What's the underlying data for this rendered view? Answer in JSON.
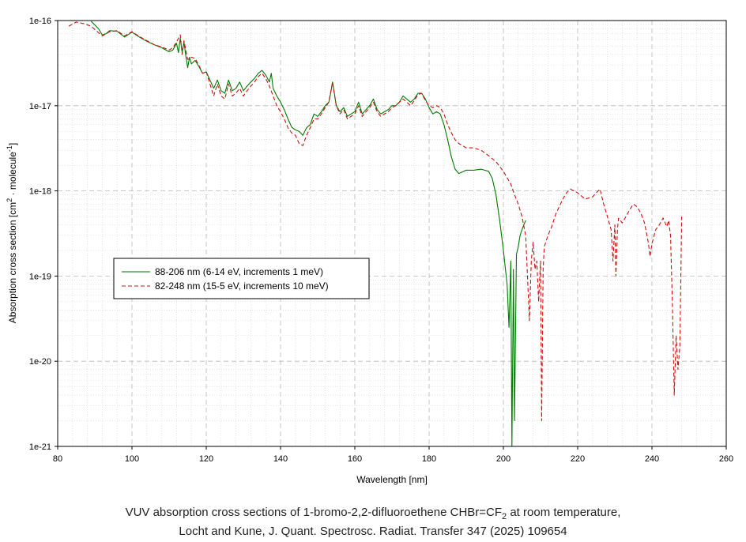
{
  "chart_data": {
    "type": "line",
    "xlabel": "Wavelength [nm]",
    "ylabel_main": "Absorption cross section [cm",
    "ylabel_sup1": "2",
    "ylabel_mid": " · molecule",
    "ylabel_sup2": "-1",
    "ylabel_end": "]",
    "xlim": [
      80,
      260
    ],
    "ylim": [
      1e-21,
      1e-16
    ],
    "y_scale": "log",
    "grid": true,
    "legend_position": "left-middle",
    "x_ticks": [
      80,
      100,
      120,
      140,
      160,
      180,
      200,
      220,
      240,
      260
    ],
    "x_tick_labels": [
      "80",
      "100",
      "120",
      "140",
      "160",
      "180",
      "200",
      "220",
      "240",
      "260"
    ],
    "y_ticks": [
      1e-21,
      1e-20,
      1e-19,
      1e-18,
      1e-17,
      1e-16
    ],
    "y_tick_labels": [
      "1e-21",
      "1e-20",
      "1e-19",
      "1e-18",
      "1e-17",
      "1e-16"
    ],
    "series": [
      {
        "name": "88-206 nm (6-14 eV, increments 1 meV)",
        "color": "#007a00",
        "dash": "solid",
        "points": [
          [
            89,
            9.8e-17
          ],
          [
            91,
            8e-17
          ],
          [
            92,
            6.8e-17
          ],
          [
            93,
            7e-17
          ],
          [
            94,
            7.6e-17
          ],
          [
            96,
            7.5e-17
          ],
          [
            98,
            6.4e-17
          ],
          [
            100,
            7.3e-17
          ],
          [
            102,
            6.4e-17
          ],
          [
            104,
            5.7e-17
          ],
          [
            106,
            5.2e-17
          ],
          [
            108,
            4.8e-17
          ],
          [
            110,
            4.3e-17
          ],
          [
            111,
            4.5e-17
          ],
          [
            112,
            5.4e-17
          ],
          [
            112.5,
            4.2e-17
          ],
          [
            113,
            6.2e-17
          ],
          [
            113.5,
            4.2e-17
          ],
          [
            114,
            5.6e-17
          ],
          [
            114.5,
            3.8e-17
          ],
          [
            115,
            2.8e-17
          ],
          [
            115.5,
            3.7e-17
          ],
          [
            116,
            3.1e-17
          ],
          [
            117,
            3.4e-17
          ],
          [
            118,
            2.9e-17
          ],
          [
            119,
            2.4e-17
          ],
          [
            120,
            2.5e-17
          ],
          [
            121,
            2e-17
          ],
          [
            122,
            1.6e-17
          ],
          [
            123,
            2e-17
          ],
          [
            124,
            1.5e-17
          ],
          [
            125,
            1.4e-17
          ],
          [
            126,
            2e-17
          ],
          [
            127,
            1.5e-17
          ],
          [
            128,
            1.6e-17
          ],
          [
            129,
            1.9e-17
          ],
          [
            130,
            1.5e-17
          ],
          [
            131,
            1.7e-17
          ],
          [
            132,
            1.9e-17
          ],
          [
            133,
            2.1e-17
          ],
          [
            134,
            2.4e-17
          ],
          [
            135,
            2.6e-17
          ],
          [
            136,
            2.3e-17
          ],
          [
            137,
            1.9e-17
          ],
          [
            137.5,
            2.4e-17
          ],
          [
            138,
            1.6e-17
          ],
          [
            139,
            1.3e-17
          ],
          [
            140,
            1.1e-17
          ],
          [
            141,
            9e-18
          ],
          [
            142,
            7e-18
          ],
          [
            143,
            5.6e-18
          ],
          [
            144,
            5.2e-18
          ],
          [
            145,
            5e-18
          ],
          [
            146,
            4.5e-18
          ],
          [
            147,
            5.5e-18
          ],
          [
            148,
            6e-18
          ],
          [
            149,
            8e-18
          ],
          [
            150,
            7.5e-18
          ],
          [
            151,
            8.5e-18
          ],
          [
            152,
            1e-17
          ],
          [
            153,
            1.1e-17
          ],
          [
            153.5,
            1.4e-17
          ],
          [
            154,
            1.9e-17
          ],
          [
            154.5,
            1.4e-17
          ],
          [
            155,
            1e-17
          ],
          [
            156,
            8.5e-18
          ],
          [
            157,
            9.5e-18
          ],
          [
            158,
            7.5e-18
          ],
          [
            159,
            8e-18
          ],
          [
            160,
            8.5e-18
          ],
          [
            161,
            1.1e-17
          ],
          [
            162,
            8e-18
          ],
          [
            163,
            9e-18
          ],
          [
            164,
            1e-17
          ],
          [
            165,
            1.2e-17
          ],
          [
            166,
            9e-18
          ],
          [
            167,
            8e-18
          ],
          [
            168,
            8.5e-18
          ],
          [
            169,
            9e-18
          ],
          [
            170,
            1e-17
          ],
          [
            171,
            1e-17
          ],
          [
            172,
            1.1e-17
          ],
          [
            173,
            1.3e-17
          ],
          [
            174,
            1.2e-17
          ],
          [
            175,
            1.1e-17
          ],
          [
            176,
            1.2e-17
          ],
          [
            177,
            1.4e-17
          ],
          [
            178,
            1.4e-17
          ],
          [
            179,
            1.2e-17
          ],
          [
            180,
            9.5e-18
          ],
          [
            181,
            8e-18
          ],
          [
            182,
            8.5e-18
          ],
          [
            183,
            8e-18
          ],
          [
            184,
            6e-18
          ],
          [
            185,
            4e-18
          ],
          [
            186,
            2.5e-18
          ],
          [
            187,
            1.8e-18
          ],
          [
            188,
            1.6e-18
          ],
          [
            190,
            1.75e-18
          ],
          [
            192,
            1.75e-18
          ],
          [
            194,
            1.8e-18
          ],
          [
            196,
            1.7e-18
          ],
          [
            197,
            1.4e-18
          ],
          [
            198,
            9e-19
          ],
          [
            199,
            4.5e-19
          ],
          [
            200,
            2e-19
          ],
          [
            201,
            8e-20
          ],
          [
            201.5,
            2.5e-20
          ],
          [
            202,
            1.5e-19
          ],
          [
            202.3,
            1e-21
          ],
          [
            202.7,
            1.2e-19
          ],
          [
            203,
            2e-21
          ],
          [
            203.5,
            1.8e-19
          ],
          [
            204,
            2.2e-19
          ],
          [
            204.5,
            3e-19
          ],
          [
            205,
            3.5e-19
          ],
          [
            205.5,
            4e-19
          ],
          [
            206,
            4.5e-19
          ]
        ]
      },
      {
        "name": "82-248 nm (15-5 eV, increments 10 meV)",
        "color": "#cc1111",
        "dash": "dashed",
        "points": [
          [
            83,
            8.6e-17
          ],
          [
            85,
            9.6e-17
          ],
          [
            87,
            9.2e-17
          ],
          [
            89,
            8.6e-17
          ],
          [
            91,
            7.2e-17
          ],
          [
            92,
            6.6e-17
          ],
          [
            94,
            7.4e-17
          ],
          [
            96,
            7.6e-17
          ],
          [
            98,
            6.6e-17
          ],
          [
            100,
            7.4e-17
          ],
          [
            102,
            6.5e-17
          ],
          [
            104,
            5.8e-17
          ],
          [
            106,
            5.2e-17
          ],
          [
            108,
            4.9e-17
          ],
          [
            110,
            4.5e-17
          ],
          [
            111,
            4.8e-17
          ],
          [
            112,
            5.6e-17
          ],
          [
            113,
            6.8e-17
          ],
          [
            113.5,
            4e-17
          ],
          [
            114,
            5.8e-17
          ],
          [
            115,
            3.5e-17
          ],
          [
            116,
            3.7e-17
          ],
          [
            117,
            3.6e-17
          ],
          [
            118,
            3e-17
          ],
          [
            119,
            2.4e-17
          ],
          [
            120,
            2.5e-17
          ],
          [
            121,
            1.8e-17
          ],
          [
            122,
            1.3e-17
          ],
          [
            123,
            1.8e-17
          ],
          [
            124,
            1.3e-17
          ],
          [
            125,
            1.2e-17
          ],
          [
            126,
            1.8e-17
          ],
          [
            127,
            1.3e-17
          ],
          [
            128,
            1.4e-17
          ],
          [
            129,
            1.6e-17
          ],
          [
            130,
            1.3e-17
          ],
          [
            131,
            1.5e-17
          ],
          [
            132,
            1.7e-17
          ],
          [
            133,
            1.9e-17
          ],
          [
            134,
            2.2e-17
          ],
          [
            135,
            2.4e-17
          ],
          [
            136,
            2.1e-17
          ],
          [
            137,
            1.7e-17
          ],
          [
            138,
            1.3e-17
          ],
          [
            139,
            1e-17
          ],
          [
            140,
            8.5e-18
          ],
          [
            141,
            7e-18
          ],
          [
            142,
            5.5e-18
          ],
          [
            143,
            4.8e-18
          ],
          [
            144,
            4.5e-18
          ],
          [
            145,
            3.6e-18
          ],
          [
            146,
            3.4e-18
          ],
          [
            147,
            4.5e-18
          ],
          [
            148,
            5.5e-18
          ],
          [
            149,
            7e-18
          ],
          [
            150,
            7e-18
          ],
          [
            151,
            8e-18
          ],
          [
            152,
            9.5e-18
          ],
          [
            153,
            1.1e-17
          ],
          [
            154,
            1.9e-17
          ],
          [
            155,
            1e-17
          ],
          [
            156,
            8e-18
          ],
          [
            157,
            9e-18
          ],
          [
            158,
            7e-18
          ],
          [
            159,
            7.5e-18
          ],
          [
            160,
            8e-18
          ],
          [
            161,
            1e-17
          ],
          [
            162,
            7.5e-18
          ],
          [
            163,
            8.5e-18
          ],
          [
            164,
            9.5e-18
          ],
          [
            165,
            1.1e-17
          ],
          [
            166,
            8.5e-18
          ],
          [
            167,
            7.5e-18
          ],
          [
            168,
            8e-18
          ],
          [
            169,
            8.5e-18
          ],
          [
            170,
            9.5e-18
          ],
          [
            171,
            1e-17
          ],
          [
            172,
            1.1e-17
          ],
          [
            173,
            1.2e-17
          ],
          [
            174,
            1.1e-17
          ],
          [
            175,
            1e-17
          ],
          [
            176,
            1.15e-17
          ],
          [
            177,
            1.35e-17
          ],
          [
            178,
            1.4e-17
          ],
          [
            179,
            1.15e-17
          ],
          [
            180,
            1e-17
          ],
          [
            181,
            9.5e-18
          ],
          [
            182,
            1e-17
          ],
          [
            183,
            9.5e-18
          ],
          [
            184,
            8e-18
          ],
          [
            185,
            6e-18
          ],
          [
            186,
            4.8e-18
          ],
          [
            187,
            4e-18
          ],
          [
            188,
            3.6e-18
          ],
          [
            190,
            3.2e-18
          ],
          [
            192,
            3.2e-18
          ],
          [
            194,
            3e-18
          ],
          [
            196,
            2.6e-18
          ],
          [
            198,
            2.2e-18
          ],
          [
            200,
            1.7e-18
          ],
          [
            202,
            1.2e-18
          ],
          [
            203,
            9e-19
          ],
          [
            204,
            7e-19
          ],
          [
            205,
            5e-19
          ],
          [
            206,
            3e-19
          ],
          [
            206.5,
            1e-19
          ],
          [
            207,
            3e-20
          ],
          [
            207.5,
            1.5e-19
          ],
          [
            208,
            2.5e-19
          ],
          [
            208.5,
            1.2e-19
          ],
          [
            209,
            1.5e-19
          ],
          [
            209.5,
            5e-20
          ],
          [
            210,
            1.5e-19
          ],
          [
            210.3,
            2e-21
          ],
          [
            210.7,
            1.2e-19
          ],
          [
            211,
            2.2e-19
          ],
          [
            212,
            3e-19
          ],
          [
            213,
            3.8e-19
          ],
          [
            214,
            5.2e-19
          ],
          [
            215,
            6.5e-19
          ],
          [
            216,
            8e-19
          ],
          [
            217,
            9.5e-19
          ],
          [
            218,
            1.05e-18
          ],
          [
            220,
            9.5e-19
          ],
          [
            222,
            8e-19
          ],
          [
            224,
            8.5e-19
          ],
          [
            225,
            9.5e-19
          ],
          [
            226,
            1.05e-18
          ],
          [
            227,
            7e-19
          ],
          [
            228,
            5e-19
          ],
          [
            229,
            3.5e-19
          ],
          [
            229.5,
            1.5e-19
          ],
          [
            230,
            4e-19
          ],
          [
            230.3,
            1e-19
          ],
          [
            230.7,
            3.5e-19
          ],
          [
            231,
            4.8e-19
          ],
          [
            232,
            4.2e-19
          ],
          [
            233,
            5e-19
          ],
          [
            234,
            6e-19
          ],
          [
            235,
            7e-19
          ],
          [
            236,
            6.5e-19
          ],
          [
            237,
            5.5e-19
          ],
          [
            238,
            4.2e-19
          ],
          [
            239,
            2.5e-19
          ],
          [
            239.5,
            1.7e-19
          ],
          [
            240,
            2.4e-19
          ],
          [
            241,
            3.5e-19
          ],
          [
            242,
            4e-19
          ],
          [
            243,
            4.8e-19
          ],
          [
            244,
            3.8e-19
          ],
          [
            244.5,
            4.5e-19
          ],
          [
            245,
            3e-19
          ],
          [
            245.5,
            5e-20
          ],
          [
            246,
            4e-21
          ],
          [
            246.5,
            2e-20
          ],
          [
            247,
            8e-21
          ],
          [
            247.5,
            1.5e-20
          ],
          [
            248,
            5e-19
          ]
        ]
      }
    ]
  },
  "caption": {
    "line1_pre": "VUV absorption cross sections of 1-bromo-2,2-difluoroethene CHBr=CF",
    "line1_sub": "2",
    "line1_post": " at room temperature,",
    "line2": "Locht and Kune, J. Quant. Spectrosc. Radiat. Transfer 347 (2025) 109654"
  }
}
